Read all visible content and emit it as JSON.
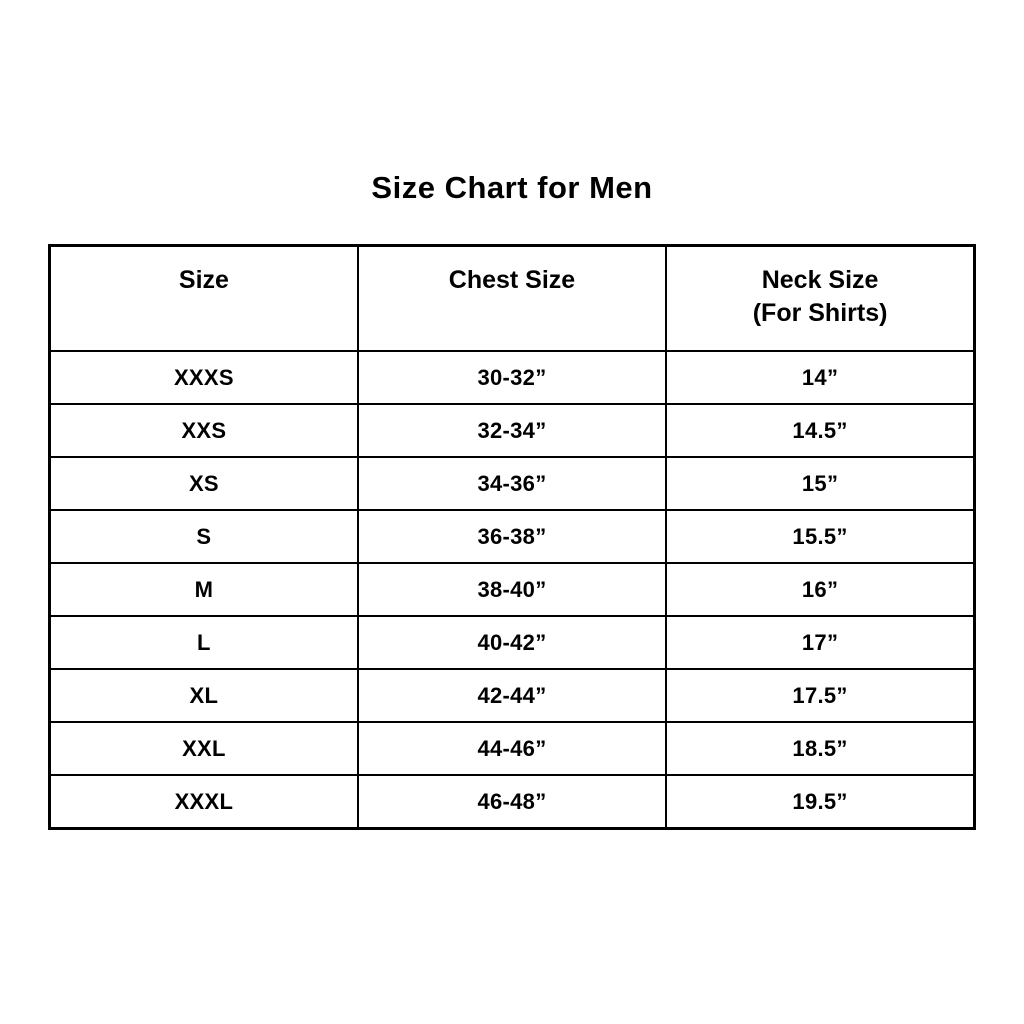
{
  "title": "Size Chart for Men",
  "colors": {
    "background": "#ffffff",
    "text": "#000000",
    "border": "#000000"
  },
  "chart_data": {
    "type": "table",
    "title": "Size Chart for Men",
    "columns": [
      {
        "label": "Size",
        "sublabel": ""
      },
      {
        "label": "Chest Size",
        "sublabel": ""
      },
      {
        "label": "Neck Size",
        "sublabel": "(For Shirts)"
      }
    ],
    "rows": [
      [
        "XXXS",
        "30-32”",
        "14”"
      ],
      [
        "XXS",
        "32-34”",
        "14.5”"
      ],
      [
        "XS",
        "34-36”",
        "15”"
      ],
      [
        "S",
        "36-38”",
        "15.5”"
      ],
      [
        "M",
        "38-40”",
        "16”"
      ],
      [
        "L",
        "40-42”",
        "17”"
      ],
      [
        "XL",
        "42-44”",
        "17.5”"
      ],
      [
        "XXL",
        "44-46”",
        "18.5”"
      ],
      [
        "XXXL",
        "46-48”",
        "19.5”"
      ]
    ]
  }
}
